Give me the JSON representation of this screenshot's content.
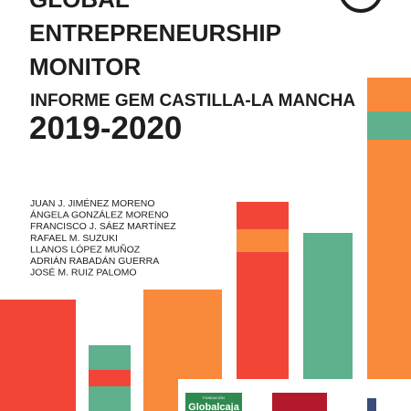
{
  "header": {
    "title_lines": [
      "GLOBAL",
      "ENTREPRENEURSHIP",
      "MONITOR"
    ],
    "subtitle": "INFORME GEM CASTILLA-LA MANCHA",
    "years": "2019-2020"
  },
  "authors": [
    "JUAN J. JIMÉNEZ MORENO",
    "ÁNGELA GONZÁLEZ MORENO",
    "FRANCISCO J. SÁEZ MARTÍNEZ",
    "RAFAEL M. SUZUKI",
    "LLANOS LÓPEZ MUÑOZ",
    "ADRIÁN RABADÁN GUERRA",
    "JOSÉ M. RUIZ PALOMO"
  ],
  "logos": {
    "sponsor_caption": "FUNDACIÓN",
    "sponsor_name": "Globalcaja"
  }
}
